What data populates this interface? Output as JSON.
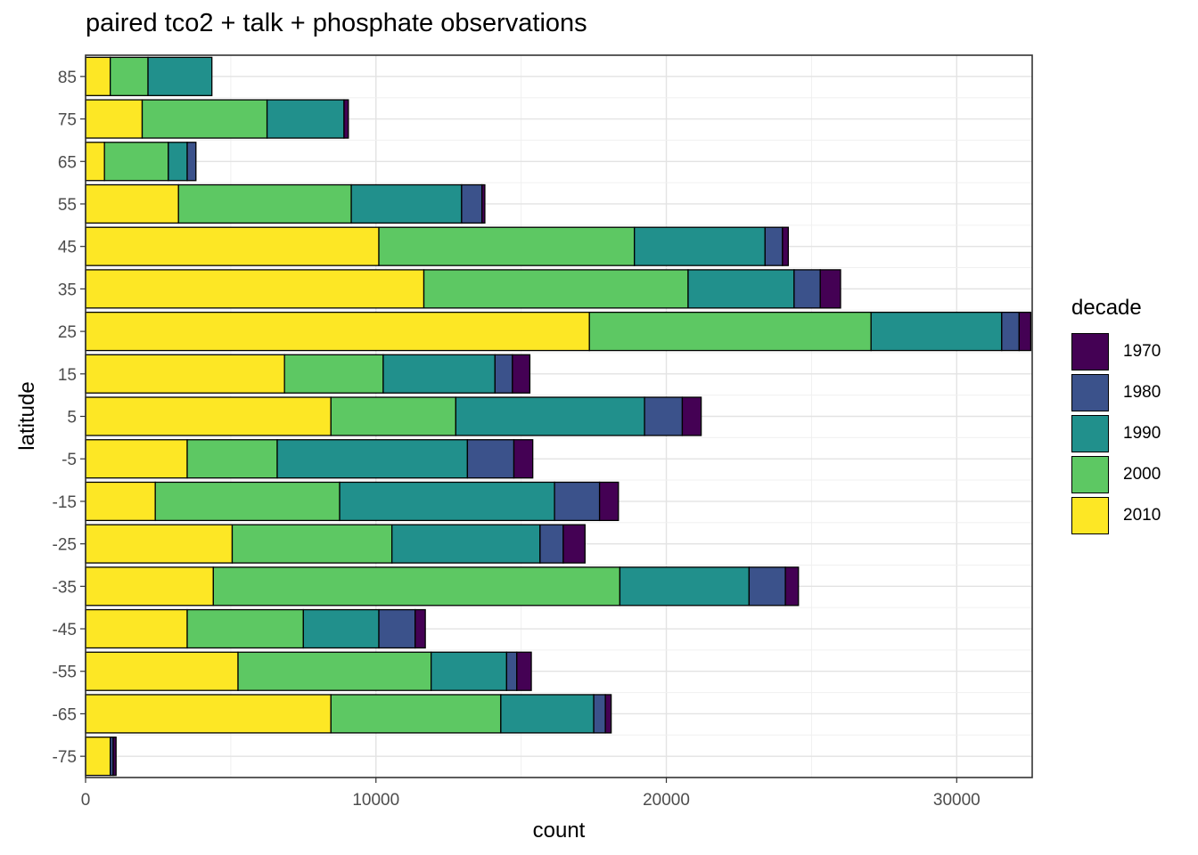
{
  "chart_data": {
    "type": "bar",
    "orientation": "horizontal",
    "stacked": true,
    "title": "paired tco2 + talk + phosphate observations",
    "xlabel": "count",
    "ylabel": "latitude",
    "xlim": [
      0,
      32600
    ],
    "x_ticks": [
      "0",
      "10000",
      "20000",
      "30000"
    ],
    "grid": true,
    "legend_position": "right",
    "legend_title": "decade",
    "categories": [
      "85",
      "75",
      "65",
      "55",
      "45",
      "35",
      "25",
      "15",
      "5",
      "-5",
      "-15",
      "-25",
      "-35",
      "-45",
      "-55",
      "-65",
      "-75"
    ],
    "stack_order": [
      "2010",
      "2000",
      "1990",
      "1980",
      "1970"
    ],
    "series": [
      {
        "name": "1970",
        "color": "#440154",
        "values": [
          0,
          150,
          0,
          100,
          200,
          700,
          400,
          600,
          650,
          650,
          650,
          750,
          450,
          350,
          500,
          200,
          100
        ]
      },
      {
        "name": "1980",
        "color": "#3B528B",
        "values": [
          0,
          0,
          300,
          700,
          600,
          900,
          600,
          600,
          1300,
          1600,
          1550,
          800,
          1250,
          1250,
          350,
          400,
          100
        ]
      },
      {
        "name": "1990",
        "color": "#21908C",
        "values": [
          2200,
          2650,
          650,
          3800,
          4500,
          3650,
          4500,
          3850,
          6500,
          6550,
          7400,
          5100,
          4450,
          2600,
          2600,
          3200,
          0
        ]
      },
      {
        "name": "2000",
        "color": "#5DC863",
        "values": [
          1300,
          4300,
          2200,
          5950,
          8800,
          9100,
          9700,
          3400,
          4300,
          3100,
          6350,
          5500,
          14000,
          4000,
          6650,
          5850,
          0
        ]
      },
      {
        "name": "2010",
        "color": "#FDE725",
        "values": [
          850,
          1950,
          650,
          3200,
          10100,
          11650,
          17350,
          6850,
          8450,
          3500,
          2400,
          5050,
          4400,
          3500,
          5250,
          8450,
          850
        ]
      }
    ]
  }
}
